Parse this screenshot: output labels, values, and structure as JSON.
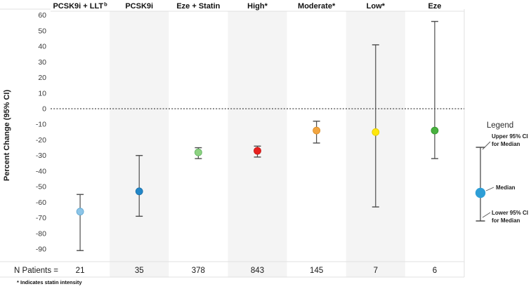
{
  "chart_data": {
    "type": "errorbar",
    "title": "",
    "ylabel": "Percent Change (95% CI)",
    "ylim": [
      -98,
      63
    ],
    "yticks": [
      60,
      50,
      40,
      30,
      20,
      10,
      0,
      -10,
      -20,
      -30,
      -40,
      -50,
      -60,
      -70,
      -80,
      -90
    ],
    "zero_reference_line": 0,
    "grid": false,
    "legend_position": "right",
    "categories": [
      "PCSK9i + LLT b",
      "PCSK9i",
      "Eze + Statin",
      "High*",
      "Moderate*",
      "Low*",
      "Eze"
    ],
    "points": [
      {
        "label": "PCSK9i + LLT",
        "sup": "b",
        "median": -66,
        "upper_ci": -55,
        "lower_ci": -91,
        "n_patients": "21",
        "fill": "#8cc5e8",
        "edge": "#5da5cf",
        "shaded": false
      },
      {
        "label": "PCSK9i",
        "sup": "",
        "median": -53,
        "upper_ci": -30,
        "lower_ci": -69,
        "n_patients": "35",
        "fill": "#2287c8",
        "edge": "#1b6ea6",
        "shaded": true
      },
      {
        "label": "Eze + Statin",
        "sup": "",
        "median": -28,
        "upper_ci": -25,
        "lower_ci": -32,
        "n_patients": "378",
        "fill": "#8ed282",
        "edge": "#5cb15c",
        "shaded": false
      },
      {
        "label": "High*",
        "sup": "",
        "median": -27,
        "upper_ci": -24,
        "lower_ci": -31,
        "n_patients": "843",
        "fill": "#e8201e",
        "edge": "#c01513",
        "shaded": true
      },
      {
        "label": "Moderate*",
        "sup": "",
        "median": -14,
        "upper_ci": -8,
        "lower_ci": -22,
        "n_patients": "145",
        "fill": "#f2a540",
        "edge": "#d88a20",
        "shaded": false
      },
      {
        "label": "Low*",
        "sup": "",
        "median": -15,
        "upper_ci": 41,
        "lower_ci": -63,
        "n_patients": "7",
        "fill": "#ffe70d",
        "edge": "#e3cc00",
        "shaded": true
      },
      {
        "label": "Eze",
        "sup": "",
        "median": -14,
        "upper_ci": 56,
        "lower_ci": -32,
        "n_patients": "6",
        "fill": "#48b13e",
        "edge": "#33912c",
        "shaded": false
      }
    ],
    "series": [
      {
        "name": "Median",
        "values": [
          -66,
          -53,
          -28,
          -27,
          -14,
          -15,
          -14
        ]
      },
      {
        "name": "Upper 95% CI for Median",
        "values": [
          -55,
          -30,
          -25,
          -24,
          -8,
          41,
          56
        ]
      },
      {
        "name": "Lower 95% CI for Median",
        "values": [
          -91,
          -69,
          -32,
          -31,
          -22,
          -63,
          -32
        ]
      },
      {
        "name": "N Patients",
        "values": [
          21,
          35,
          378,
          843,
          145,
          7,
          6
        ]
      }
    ],
    "n_row_label": "N Patients =",
    "footnote": "* Indicates statin intensity",
    "legend": {
      "title": "Legend",
      "upper_label_lines": [
        "Upper 95% CI",
        "for Median"
      ],
      "median_label": "Median",
      "lower_label_lines": [
        "Lower 95% CI",
        "for Median"
      ],
      "dot_color": "#2e9ed6"
    },
    "style_colors": {
      "band_shade": "#f4f4f4",
      "errorbar": "#4d4d4d",
      "border": "#e0e0e0",
      "text_dark": "#1a1a1a",
      "tick_text": "#3a3a3a"
    }
  }
}
